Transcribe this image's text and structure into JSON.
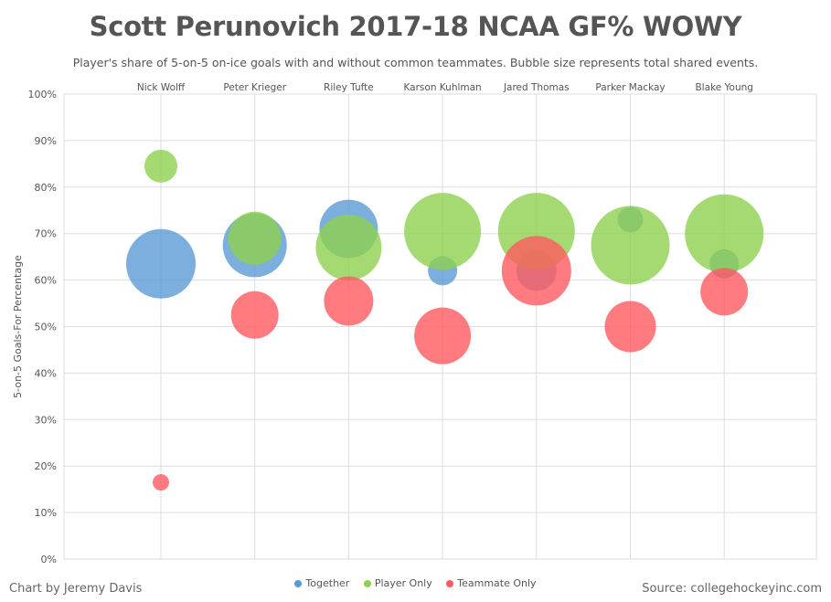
{
  "title": "Scott Perunovich 2017-18 NCAA GF% WOWY",
  "subtitle": "Player's share of 5-on-5 on-ice goals with and without common teammates. Bubble size represents total shared events.",
  "credit": "Chart by Jeremy Davis",
  "source": "Source: collegehockeyinc.com",
  "colors": {
    "Together": "#5b9bd5",
    "Player Only": "#8fd14f",
    "Teammate Only": "#ff5a5f",
    "grid": "#dddddd",
    "text": "#555555"
  },
  "chart_data": {
    "type": "bubble",
    "ylabel": "5-on-5 Goals-For  Percentage",
    "ylim": [
      0,
      100
    ],
    "yticks": [
      "0%",
      "10%",
      "20%",
      "30%",
      "40%",
      "50%",
      "60%",
      "70%",
      "80%",
      "90%",
      "100%"
    ],
    "categories": [
      "Nick Wolff",
      "Peter Krieger",
      "Riley Tufte",
      "Karson Kuhlman",
      "Jared Thomas",
      "Parker Mackay",
      "Blake Young"
    ],
    "legend_position": "bottom",
    "grid": true,
    "series": [
      {
        "name": "Together",
        "values": [
          63.5,
          67.5,
          71,
          62,
          62,
          73,
          63.5
        ],
        "sizes": [
          38,
          35,
          32,
          16,
          22,
          14,
          16
        ]
      },
      {
        "name": "Player Only",
        "values": [
          84.5,
          69,
          67,
          70.5,
          70.5,
          67.5,
          70
        ],
        "sizes": [
          18,
          29,
          36,
          42,
          42,
          43,
          43
        ]
      },
      {
        "name": "Teammate Only",
        "values": [
          16.5,
          52.5,
          55.5,
          48,
          62,
          50,
          57.5
        ],
        "sizes": [
          9,
          26,
          27,
          31,
          38,
          28,
          26
        ]
      }
    ]
  }
}
